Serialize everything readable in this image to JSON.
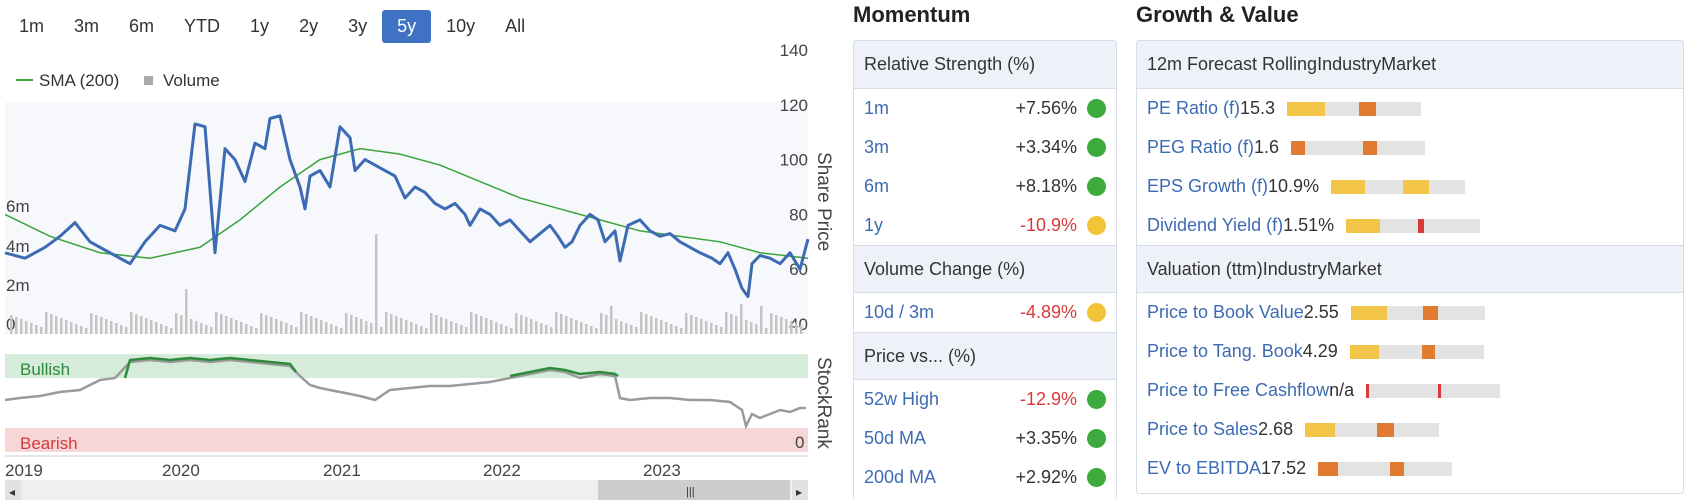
{
  "range_buttons": [
    {
      "label": "1m",
      "active": false
    },
    {
      "label": "3m",
      "active": false
    },
    {
      "label": "6m",
      "active": false
    },
    {
      "label": "YTD",
      "active": false
    },
    {
      "label": "1y",
      "active": false
    },
    {
      "label": "2y",
      "active": false
    },
    {
      "label": "3y",
      "active": false
    },
    {
      "label": "5y",
      "active": true
    },
    {
      "label": "10y",
      "active": false
    },
    {
      "label": "All",
      "active": false
    }
  ],
  "chart_data": {
    "type": "line",
    "legend": [
      {
        "name": "SMA (200)",
        "color": "#3aa53a"
      },
      {
        "name": "Volume",
        "color": "#aaaaaa"
      }
    ],
    "right_axis_label": "Share Price",
    "right_ticks": [
      140,
      120,
      100,
      80,
      60,
      40
    ],
    "left_ticks": [
      "6m",
      "4m",
      "2m",
      "0"
    ],
    "x_labels": [
      "2019",
      "2020",
      "2021",
      "2022",
      "2023"
    ],
    "stockrank_label": "StockRank",
    "bullish_label": "Bullish",
    "bearish_label": "Bearish",
    "stockrank_tick": "0",
    "price_color": "#3d6bb3"
  },
  "momentum": {
    "title": "Momentum",
    "relative_strength": {
      "header": "Relative Strength (%)",
      "rows": [
        {
          "label": "1m",
          "value": "+7.56%",
          "neg": false,
          "dot": "#3caa3c"
        },
        {
          "label": "3m",
          "value": "+3.34%",
          "neg": false,
          "dot": "#3caa3c"
        },
        {
          "label": "6m",
          "value": "+8.18%",
          "neg": false,
          "dot": "#3caa3c"
        },
        {
          "label": "1y",
          "value": "-10.9%",
          "neg": true,
          "dot": "#f2c437"
        }
      ]
    },
    "volume_change": {
      "header": "Volume Change (%)",
      "rows": [
        {
          "label": "10d / 3m",
          "value": "-4.89%",
          "neg": true,
          "dot": "#f2c437"
        }
      ]
    },
    "price_vs": {
      "header": "Price vs... (%)",
      "rows": [
        {
          "label": "52w High",
          "value": "-12.9%",
          "neg": true,
          "dot": "#3caa3c"
        },
        {
          "label": "50d MA",
          "value": "+3.35%",
          "neg": false,
          "dot": "#3caa3c"
        },
        {
          "label": "200d MA",
          "value": "+2.92%",
          "neg": false,
          "dot": "#3caa3c"
        }
      ]
    }
  },
  "growth_value": {
    "title": "Growth & Value",
    "col_industry": "Industry",
    "col_market": "Market",
    "forecast": {
      "header": "12m Forecast Rolling",
      "rows": [
        {
          "label": "PE Ratio (f)",
          "value": "15.3",
          "industry": 0.52,
          "industry_color": "#f2c447",
          "market": 0.28,
          "market_color": "#e07b30"
        },
        {
          "label": "PEG Ratio (f)",
          "value": "1.6",
          "industry": 0.2,
          "industry_color": "#e07b30",
          "market": 0.22,
          "market_color": "#e07b30"
        },
        {
          "label": "EPS Growth (f)",
          "value": "10.9%",
          "industry": 0.47,
          "industry_color": "#f2c447",
          "market": 0.42,
          "market_color": "#f2c447"
        },
        {
          "label": "Dividend Yield (f)",
          "value": "1.51%",
          "industry": 0.47,
          "industry_color": "#f2c447",
          "market": 0.1,
          "market_color": "#d83a3a"
        }
      ]
    },
    "valuation": {
      "header": "Valuation (ttm)",
      "rows": [
        {
          "label": "Price to Book Value",
          "value": "2.55",
          "industry": 0.5,
          "industry_color": "#f2c447",
          "market": 0.24,
          "market_color": "#e07b30"
        },
        {
          "label": "Price to Tang. Book",
          "value": "4.29",
          "industry": 0.4,
          "industry_color": "#f2c447",
          "market": 0.22,
          "market_color": "#e07b30"
        },
        {
          "label": "Price to Free Cashflow",
          "value": "n/a",
          "industry": 0.04,
          "industry_color": "#d83a3a",
          "market": 0.04,
          "market_color": "#d83a3a"
        },
        {
          "label": "Price to Sales",
          "value": "2.68",
          "industry": 0.42,
          "industry_color": "#f2c447",
          "market": 0.28,
          "market_color": "#e07b30"
        },
        {
          "label": "EV to EBITDA",
          "value": "17.52",
          "industry": 0.27,
          "industry_color": "#e07b30",
          "market": 0.22,
          "market_color": "#e07b30"
        }
      ]
    }
  }
}
